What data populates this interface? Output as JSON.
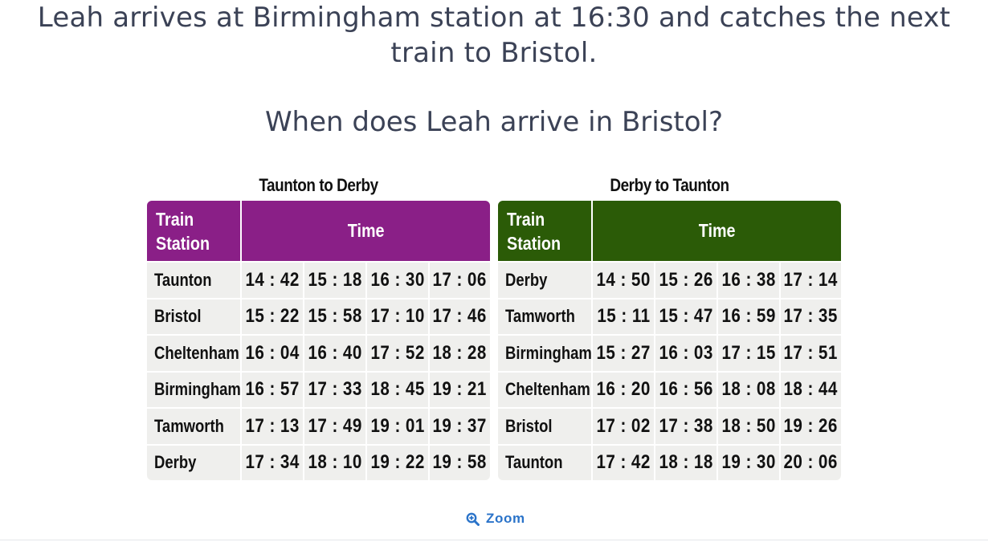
{
  "question": {
    "text": "Leah arrives at Birmingham station at 16:30 and catches the next train to Bristol.",
    "prompt": "When does Leah arrive in Bristol?"
  },
  "timetables": [
    {
      "title": "Taunton to Derby",
      "header_color": "#8a1f87",
      "station_header": "Train\nStation",
      "time_header": "Time",
      "rows": [
        {
          "station": "Taunton",
          "times": [
            "14 : 42",
            "15 : 18",
            "16 : 30",
            "17 : 06"
          ]
        },
        {
          "station": "Bristol",
          "times": [
            "15 : 22",
            "15 : 58",
            "17 : 10",
            "17 : 46"
          ]
        },
        {
          "station": "Cheltenham",
          "times": [
            "16 : 04",
            "16 : 40",
            "17 : 52",
            "18 : 28"
          ]
        },
        {
          "station": "Birmingham",
          "times": [
            "16 : 57",
            "17 : 33",
            "18 : 45",
            "19 : 21"
          ]
        },
        {
          "station": "Tamworth",
          "times": [
            "17 : 13",
            "17 : 49",
            "19 : 01",
            "19 : 37"
          ]
        },
        {
          "station": "Derby",
          "times": [
            "17 : 34",
            "18 : 10",
            "19 : 22",
            "19 : 58"
          ]
        }
      ]
    },
    {
      "title": "Derby to Taunton",
      "header_color": "#2b5b07",
      "station_header": "Train\nStation",
      "time_header": "Time",
      "rows": [
        {
          "station": "Derby",
          "times": [
            "14 : 50",
            "15 : 26",
            "16 : 38",
            "17 : 14"
          ]
        },
        {
          "station": "Tamworth",
          "times": [
            "15 : 11",
            "15 : 47",
            "16 : 59",
            "17 : 35"
          ]
        },
        {
          "station": "Birmingham",
          "times": [
            "15 : 27",
            "16 : 03",
            "17 : 15",
            "17 : 51"
          ]
        },
        {
          "station": "Cheltenham",
          "times": [
            "16 : 20",
            "16 : 56",
            "18 : 08",
            "18 : 44"
          ]
        },
        {
          "station": "Bristol",
          "times": [
            "17 : 02",
            "17 : 38",
            "18 : 50",
            "19 : 26"
          ]
        },
        {
          "station": "Taunton",
          "times": [
            "17 : 42",
            "18 : 18",
            "19 : 30",
            "20 : 06"
          ]
        }
      ]
    }
  ],
  "zoom": {
    "label": "Zoom",
    "icon": "zoom-in-icon",
    "color": "#2a73c9"
  }
}
